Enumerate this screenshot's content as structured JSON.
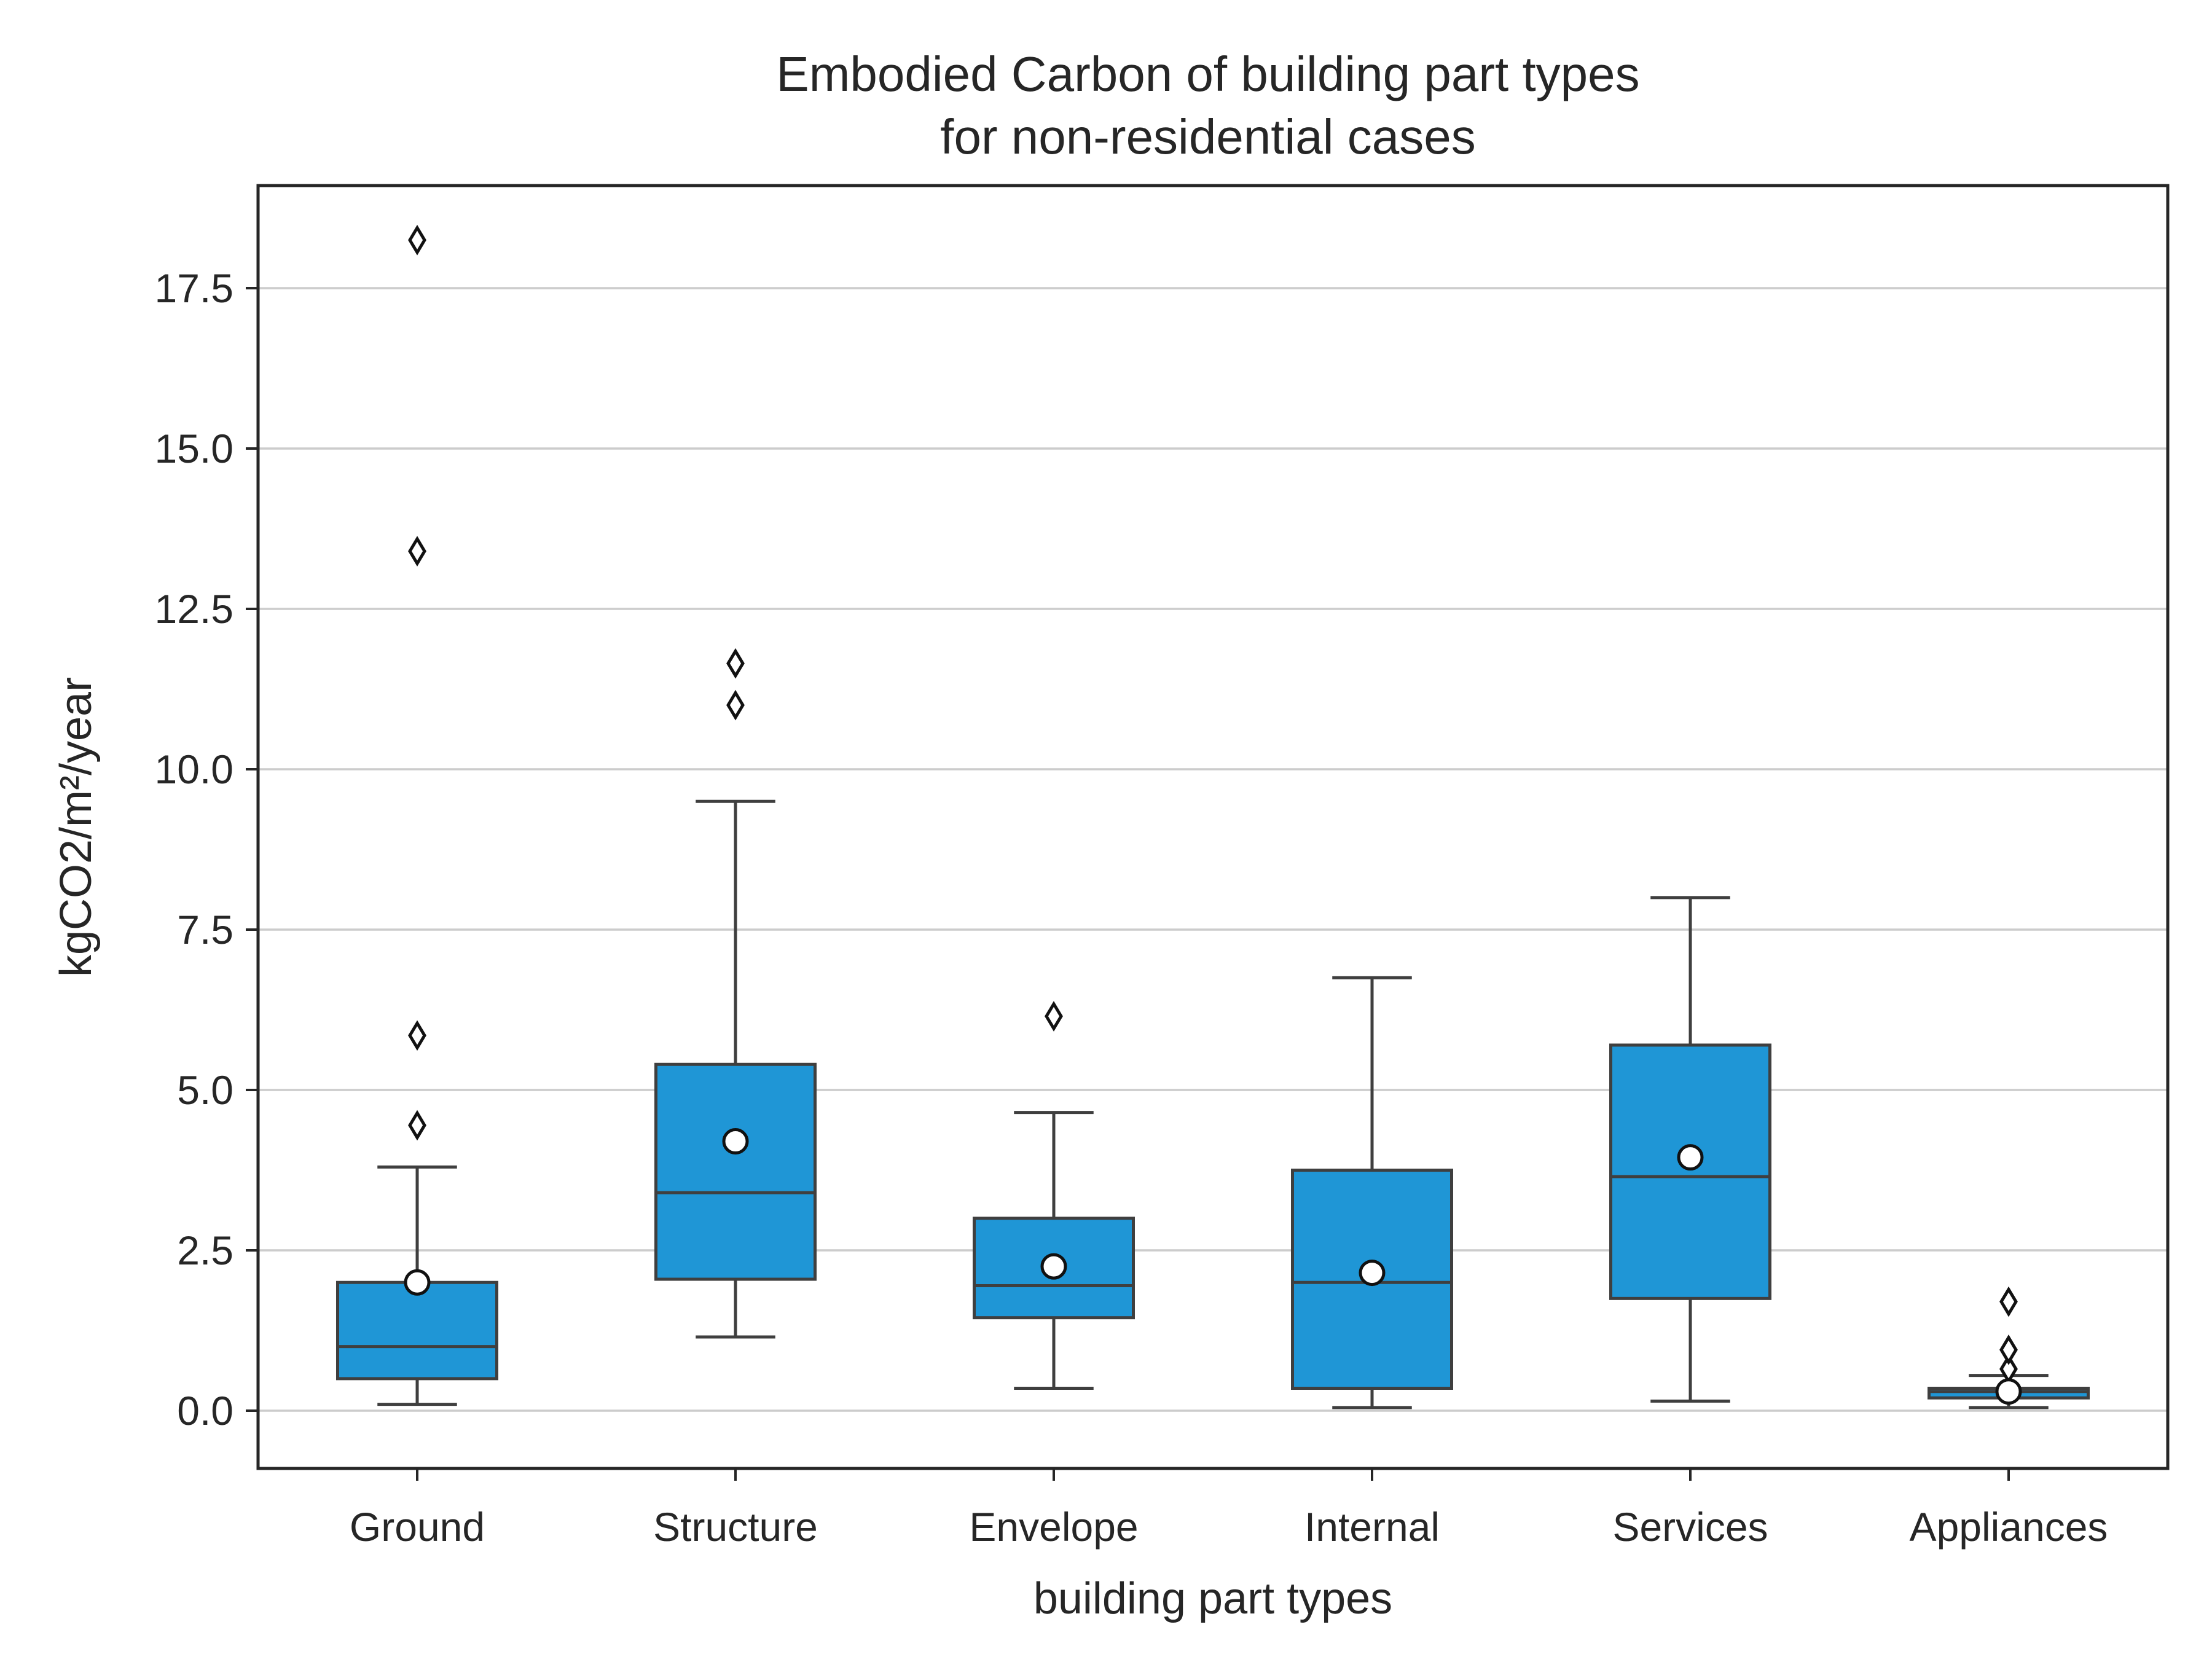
{
  "chart_data": {
    "type": "box",
    "title": [
      "Embodied Carbon of building part types",
      "for non-residential cases"
    ],
    "xlabel": "building part types",
    "ylabel": "kgCO2/m²/year",
    "ylim": [
      -0.9,
      19.1
    ],
    "yticks": [
      0.0,
      2.5,
      5.0,
      7.5,
      10.0,
      12.5,
      15.0,
      17.5
    ],
    "ytick_labels": [
      "0.0",
      "2.5",
      "5.0",
      "7.5",
      "10.0",
      "12.5",
      "15.0",
      "17.5"
    ],
    "grid": "horizontal",
    "box_color": "#1f96d6",
    "edge_color": "#3f3f3f",
    "outlier_marker": "diamond",
    "mean_marker": "white circle",
    "categories": [
      "Ground",
      "Structure",
      "Envelope",
      "Internal",
      "Services",
      "Appliances"
    ],
    "boxes": [
      {
        "category": "Ground",
        "whisker_low": 0.1,
        "q1": 0.5,
        "median": 1.0,
        "q3": 2.0,
        "whisker_high": 3.8,
        "mean": 2.0,
        "outliers": [
          4.45,
          5.85,
          13.4,
          18.25
        ]
      },
      {
        "category": "Structure",
        "whisker_low": 1.15,
        "q1": 2.05,
        "median": 3.4,
        "q3": 5.4,
        "whisker_high": 9.5,
        "mean": 4.2,
        "outliers": [
          11.0,
          11.65
        ]
      },
      {
        "category": "Envelope",
        "whisker_low": 0.35,
        "q1": 1.45,
        "median": 1.95,
        "q3": 3.0,
        "whisker_high": 4.65,
        "mean": 2.25,
        "outliers": [
          6.15
        ]
      },
      {
        "category": "Internal",
        "whisker_low": 0.05,
        "q1": 0.35,
        "median": 2.0,
        "q3": 3.75,
        "whisker_high": 6.75,
        "mean": 2.15,
        "outliers": []
      },
      {
        "category": "Services",
        "whisker_low": 0.15,
        "q1": 1.75,
        "median": 3.65,
        "q3": 5.7,
        "whisker_high": 8.0,
        "mean": 3.95,
        "outliers": []
      },
      {
        "category": "Appliances",
        "whisker_low": 0.05,
        "q1": 0.2,
        "median": 0.3,
        "q3": 0.35,
        "whisker_high": 0.55,
        "mean": 0.3,
        "outliers": [
          0.65,
          0.95,
          1.7
        ]
      }
    ]
  }
}
